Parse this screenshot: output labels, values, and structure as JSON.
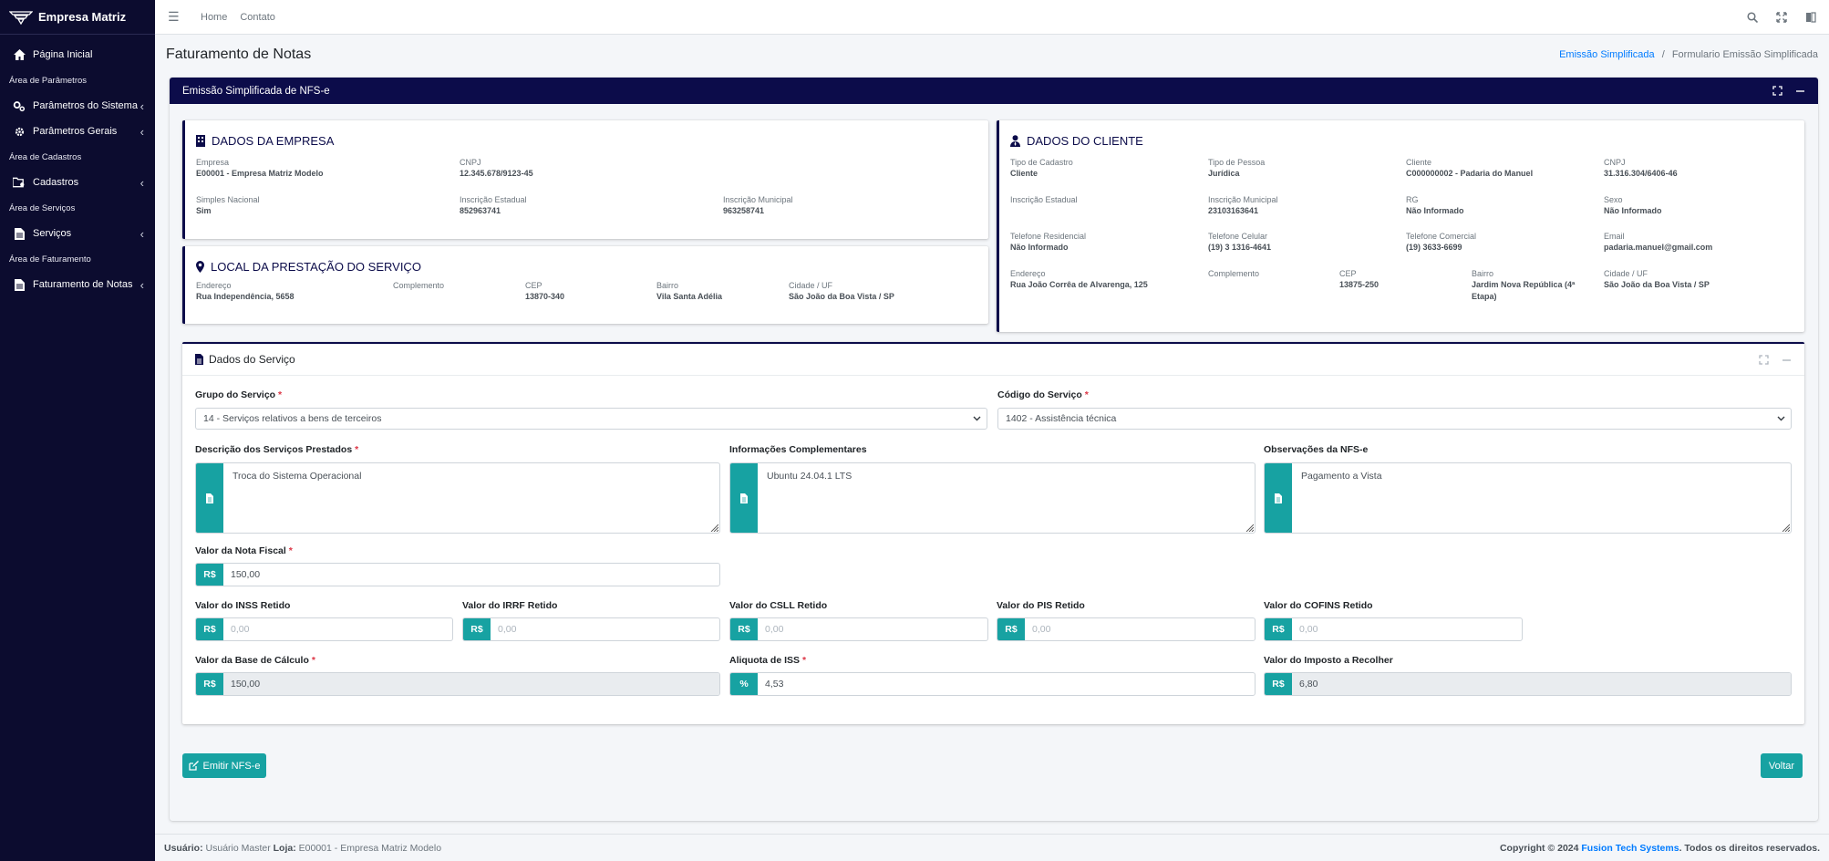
{
  "sidebar": {
    "brand": "Empresa Matriz",
    "home": "Página Inicial",
    "sec_params": "Área de Parâmetros",
    "params_sys": "Parâmetros do Sistema",
    "params_gen": "Parâmetros Gerais",
    "sec_cad": "Área de Cadastros",
    "cadastros": "Cadastros",
    "sec_serv": "Área de Serviços",
    "servicos": "Serviços",
    "sec_fat": "Área de Faturamento",
    "faturamento": "Faturamento de Notas"
  },
  "topbar": {
    "home": "Home",
    "contato": "Contato"
  },
  "page": {
    "title": "Faturamento de Notas",
    "breadcrumb_link": "Emissão Simplificada",
    "breadcrumb_sep": "/",
    "breadcrumb_current": "Formulario Emissão Simplificada"
  },
  "card_title": "Emissão Simplificada de NFS-e",
  "empresa": {
    "title": "DADOS DA EMPRESA",
    "empresa_k": "Empresa",
    "empresa_v": "E00001 - Empresa Matriz Modelo",
    "cnpj_k": "CNPJ",
    "cnpj_v": "12.345.678/9123-45",
    "simples_k": "Simples Nacional",
    "simples_v": "Sim",
    "ie_k": "Inscrição Estadual",
    "ie_v": "852963741",
    "im_k": "Inscrição Municipal",
    "im_v": "963258741"
  },
  "local": {
    "title": "LOCAL DA PRESTAÇÃO DO SERVIÇO",
    "end_k": "Endereço",
    "end_v": "Rua Independência, 5658",
    "comp_k": "Complemento",
    "comp_v": "",
    "cep_k": "CEP",
    "cep_v": "13870-340",
    "bairro_k": "Bairro",
    "bairro_v": "Vila Santa Adélia",
    "cidade_k": "Cidade / UF",
    "cidade_v": "São João da Boa Vista / SP"
  },
  "cliente": {
    "title": "DADOS DO CLIENTE",
    "tipocad_k": "Tipo de Cadastro",
    "tipocad_v": "Cliente",
    "tipopes_k": "Tipo de Pessoa",
    "tipopes_v": "Jurídica",
    "cli_k": "Cliente",
    "cli_v": "C000000002 - Padaria do Manuel",
    "cnpj_k": "CNPJ",
    "cnpj_v": "31.316.304/6406-46",
    "ie_k": "Inscrição Estadual",
    "ie_v": "",
    "im_k": "Inscrição Municipal",
    "im_v": "23103163641",
    "rg_k": "RG",
    "rg_v": "Não Informado",
    "sexo_k": "Sexo",
    "sexo_v": "Não Informado",
    "telres_k": "Telefone Residencial",
    "telres_v": "Não Informado",
    "telcel_k": "Telefone Celular",
    "telcel_v": "(19) 3 1316-4641",
    "telcom_k": "Telefone Comercial",
    "telcom_v": "(19) 3633-6699",
    "email_k": "Email",
    "email_v": "padaria.manuel@gmail.com",
    "end_k": "Endereço",
    "end_v": "Rua João Corrêa de Alvarenga, 125",
    "comp_k": "Complemento",
    "comp_v": "",
    "cep_k": "CEP",
    "cep_v": "13875-250",
    "bairro_k": "Bairro",
    "bairro_v1": "Jardim Nova República (4ª",
    "bairro_v2": "Etapa)",
    "cidade_k": "Cidade / UF",
    "cidade_v": "São João da Boa Vista / SP"
  },
  "servico": {
    "title": "Dados do Serviço",
    "grupo_label": "Grupo do Serviço",
    "grupo_value": "14 - Serviços relativos a bens de terceiros",
    "codigo_label": "Código do Serviço",
    "codigo_value": "1402 - Assistência técnica",
    "desc_label": "Descrição dos Serviços Prestados",
    "desc_value": "Troca do Sistema Operacional",
    "info_label": "Informações Complementares",
    "info_value": "Ubuntu 24.04.1 LTS",
    "obs_label": "Observações da NFS-e",
    "obs_value": "Pagamento a Vista",
    "valor_label": "Valor da Nota Fiscal",
    "valor_value": "150,00",
    "inss_label": "Valor do INSS Retido",
    "irrf_label": "Valor do IRRF Retido",
    "csll_label": "Valor do CSLL Retido",
    "pis_label": "Valor do PIS Retido",
    "cofins_label": "Valor do COFINS Retido",
    "zero_placeholder": "0,00",
    "base_label": "Valor da Base de Cálculo",
    "base_value": "150,00",
    "aliq_label": "Aliquota de ISS",
    "aliq_value": "4,53",
    "imp_label": "Valor do Imposto a Recolher",
    "imp_value": "6,80",
    "currency": "R$",
    "percent": "%"
  },
  "buttons": {
    "emitir": "Emitir NFS-e",
    "voltar": "Voltar"
  },
  "footer": {
    "user_k": "Usuário:",
    "user_v": "Usuário Master",
    "loja_k": "Loja:",
    "loja_v": "E00001 - Empresa Matriz Modelo",
    "copy": "Copyright © 2024",
    "company": "Fusion Tech Systems",
    "rights": ". Todos os direitos reservados."
  },
  "colors": {
    "navy": "#0c0c4a",
    "teal": "#17a2a2",
    "link": "#007bff",
    "required": "#dc3545"
  }
}
